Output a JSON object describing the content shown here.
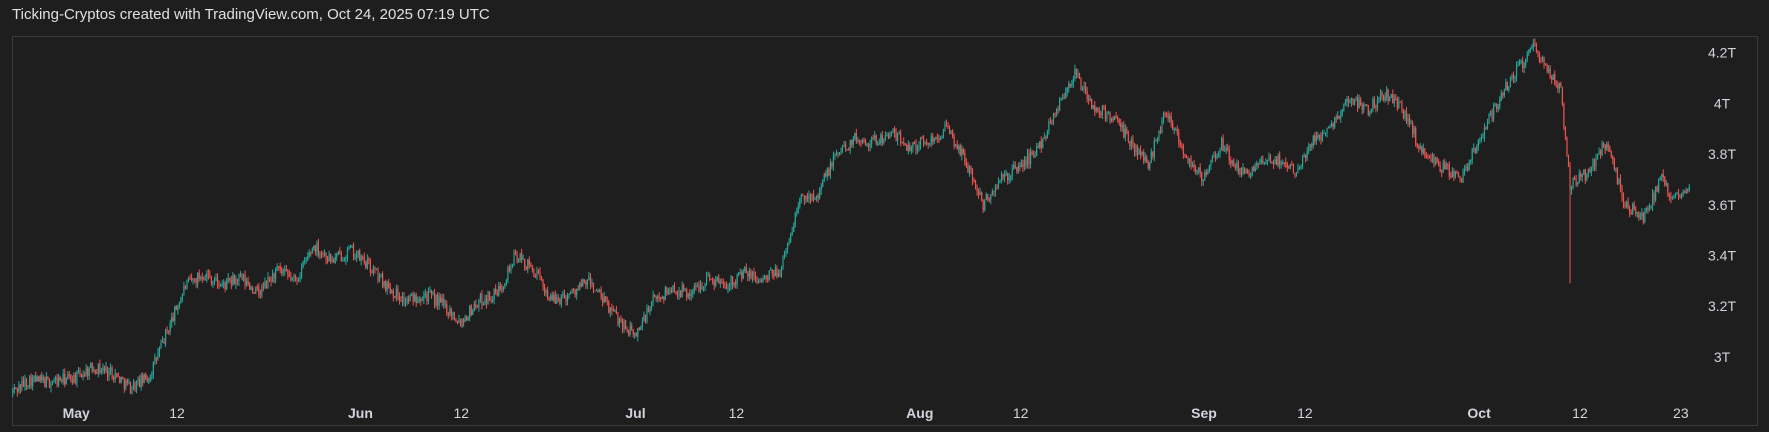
{
  "caption": "Ticking-Cryptos created with TradingView.com, Oct 24, 2025 07:19 UTC",
  "colors": {
    "background": "#1e1e1e",
    "up": "#26a69a",
    "down": "#ef5350",
    "text": "#d1d4dc"
  },
  "chart_data": {
    "type": "line",
    "title": "",
    "xlabel": "",
    "ylabel": "",
    "candles": true,
    "x_ticks": [
      {
        "label": "May",
        "date": "2025-05-01",
        "bold": true
      },
      {
        "label": "12",
        "date": "2025-05-12",
        "bold": false
      },
      {
        "label": "Jun",
        "date": "2025-06-01",
        "bold": true
      },
      {
        "label": "12",
        "date": "2025-06-12",
        "bold": false
      },
      {
        "label": "Jul",
        "date": "2025-07-01",
        "bold": true
      },
      {
        "label": "12",
        "date": "2025-07-12",
        "bold": false
      },
      {
        "label": "Aug",
        "date": "2025-08-01",
        "bold": true
      },
      {
        "label": "12",
        "date": "2025-08-12",
        "bold": false
      },
      {
        "label": "Sep",
        "date": "2025-09-01",
        "bold": true
      },
      {
        "label": "12",
        "date": "2025-09-12",
        "bold": false
      },
      {
        "label": "Oct",
        "date": "2025-10-01",
        "bold": true
      },
      {
        "label": "12",
        "date": "2025-10-12",
        "bold": false
      },
      {
        "label": "23",
        "date": "2025-10-23",
        "bold": false
      }
    ],
    "y_ticks": [
      {
        "label": "3T",
        "value": 3.0
      },
      {
        "label": "3.2T",
        "value": 3.2
      },
      {
        "label": "3.4T",
        "value": 3.4
      },
      {
        "label": "3.6T",
        "value": 3.6
      },
      {
        "label": "3.8T",
        "value": 3.8
      },
      {
        "label": "4T",
        "value": 4.0
      },
      {
        "label": "4.2T",
        "value": 4.2
      }
    ],
    "ylim": [
      2.83,
      4.25
    ],
    "xlim": [
      "2025-04-24",
      "2025-10-24"
    ],
    "y_unit": "T",
    "series": [
      {
        "points": [
          {
            "x": "2025-04-24",
            "y": 2.86
          },
          {
            "x": "2025-04-26",
            "y": 2.91
          },
          {
            "x": "2025-04-28",
            "y": 2.9
          },
          {
            "x": "2025-05-01",
            "y": 2.92
          },
          {
            "x": "2025-05-03",
            "y": 2.96
          },
          {
            "x": "2025-05-05",
            "y": 2.94
          },
          {
            "x": "2025-05-07",
            "y": 2.88
          },
          {
            "x": "2025-05-09",
            "y": 2.92
          },
          {
            "x": "2025-05-11",
            "y": 3.1
          },
          {
            "x": "2025-05-13",
            "y": 3.28
          },
          {
            "x": "2025-05-15",
            "y": 3.33
          },
          {
            "x": "2025-05-17",
            "y": 3.28
          },
          {
            "x": "2025-05-19",
            "y": 3.31
          },
          {
            "x": "2025-05-21",
            "y": 3.25
          },
          {
            "x": "2025-05-23",
            "y": 3.34
          },
          {
            "x": "2025-05-25",
            "y": 3.3
          },
          {
            "x": "2025-05-27",
            "y": 3.44
          },
          {
            "x": "2025-05-29",
            "y": 3.38
          },
          {
            "x": "2025-05-31",
            "y": 3.42
          },
          {
            "x": "2025-06-02",
            "y": 3.36
          },
          {
            "x": "2025-06-04",
            "y": 3.28
          },
          {
            "x": "2025-06-06",
            "y": 3.22
          },
          {
            "x": "2025-06-08",
            "y": 3.25
          },
          {
            "x": "2025-06-10",
            "y": 3.21
          },
          {
            "x": "2025-06-12",
            "y": 3.14
          },
          {
            "x": "2025-06-14",
            "y": 3.22
          },
          {
            "x": "2025-06-16",
            "y": 3.25
          },
          {
            "x": "2025-06-18",
            "y": 3.4
          },
          {
            "x": "2025-06-20",
            "y": 3.34
          },
          {
            "x": "2025-06-22",
            "y": 3.22
          },
          {
            "x": "2025-06-24",
            "y": 3.25
          },
          {
            "x": "2025-06-26",
            "y": 3.3
          },
          {
            "x": "2025-06-28",
            "y": 3.2
          },
          {
            "x": "2025-07-01",
            "y": 3.08
          },
          {
            "x": "2025-07-03",
            "y": 3.22
          },
          {
            "x": "2025-07-05",
            "y": 3.27
          },
          {
            "x": "2025-07-07",
            "y": 3.25
          },
          {
            "x": "2025-07-09",
            "y": 3.31
          },
          {
            "x": "2025-07-11",
            "y": 3.29
          },
          {
            "x": "2025-07-13",
            "y": 3.33
          },
          {
            "x": "2025-07-15",
            "y": 3.3
          },
          {
            "x": "2025-07-17",
            "y": 3.35
          },
          {
            "x": "2025-07-19",
            "y": 3.62
          },
          {
            "x": "2025-07-21",
            "y": 3.65
          },
          {
            "x": "2025-07-23",
            "y": 3.8
          },
          {
            "x": "2025-07-25",
            "y": 3.86
          },
          {
            "x": "2025-07-27",
            "y": 3.85
          },
          {
            "x": "2025-07-29",
            "y": 3.88
          },
          {
            "x": "2025-07-31",
            "y": 3.83
          },
          {
            "x": "2025-08-02",
            "y": 3.85
          },
          {
            "x": "2025-08-04",
            "y": 3.9
          },
          {
            "x": "2025-08-06",
            "y": 3.78
          },
          {
            "x": "2025-08-08",
            "y": 3.6
          },
          {
            "x": "2025-08-10",
            "y": 3.7
          },
          {
            "x": "2025-08-12",
            "y": 3.75
          },
          {
            "x": "2025-08-14",
            "y": 3.82
          },
          {
            "x": "2025-08-16",
            "y": 3.98
          },
          {
            "x": "2025-08-18",
            "y": 4.12
          },
          {
            "x": "2025-08-20",
            "y": 3.98
          },
          {
            "x": "2025-08-22",
            "y": 3.95
          },
          {
            "x": "2025-08-24",
            "y": 3.85
          },
          {
            "x": "2025-08-26",
            "y": 3.76
          },
          {
            "x": "2025-08-28",
            "y": 3.98
          },
          {
            "x": "2025-08-30",
            "y": 3.8
          },
          {
            "x": "2025-09-01",
            "y": 3.7
          },
          {
            "x": "2025-09-03",
            "y": 3.84
          },
          {
            "x": "2025-09-05",
            "y": 3.72
          },
          {
            "x": "2025-09-07",
            "y": 3.75
          },
          {
            "x": "2025-09-09",
            "y": 3.78
          },
          {
            "x": "2025-09-11",
            "y": 3.74
          },
          {
            "x": "2025-09-13",
            "y": 3.85
          },
          {
            "x": "2025-09-15",
            "y": 3.92
          },
          {
            "x": "2025-09-17",
            "y": 4.02
          },
          {
            "x": "2025-09-19",
            "y": 3.98
          },
          {
            "x": "2025-09-21",
            "y": 4.04
          },
          {
            "x": "2025-09-23",
            "y": 3.96
          },
          {
            "x": "2025-09-25",
            "y": 3.8
          },
          {
            "x": "2025-09-27",
            "y": 3.75
          },
          {
            "x": "2025-09-29",
            "y": 3.7
          },
          {
            "x": "2025-10-01",
            "y": 3.85
          },
          {
            "x": "2025-10-03",
            "y": 4.0
          },
          {
            "x": "2025-10-05",
            "y": 4.12
          },
          {
            "x": "2025-10-07",
            "y": 4.22
          },
          {
            "x": "2025-10-09",
            "y": 4.1
          },
          {
            "x": "2025-10-10",
            "y": 4.05
          },
          {
            "x": "2025-10-11",
            "y": 3.68
          },
          {
            "x": "2025-10-13",
            "y": 3.73
          },
          {
            "x": "2025-10-15",
            "y": 3.85
          },
          {
            "x": "2025-10-17",
            "y": 3.6
          },
          {
            "x": "2025-10-19",
            "y": 3.55
          },
          {
            "x": "2025-10-21",
            "y": 3.7
          },
          {
            "x": "2025-10-22",
            "y": 3.62
          },
          {
            "x": "2025-10-24",
            "y": 3.68
          }
        ]
      }
    ]
  }
}
